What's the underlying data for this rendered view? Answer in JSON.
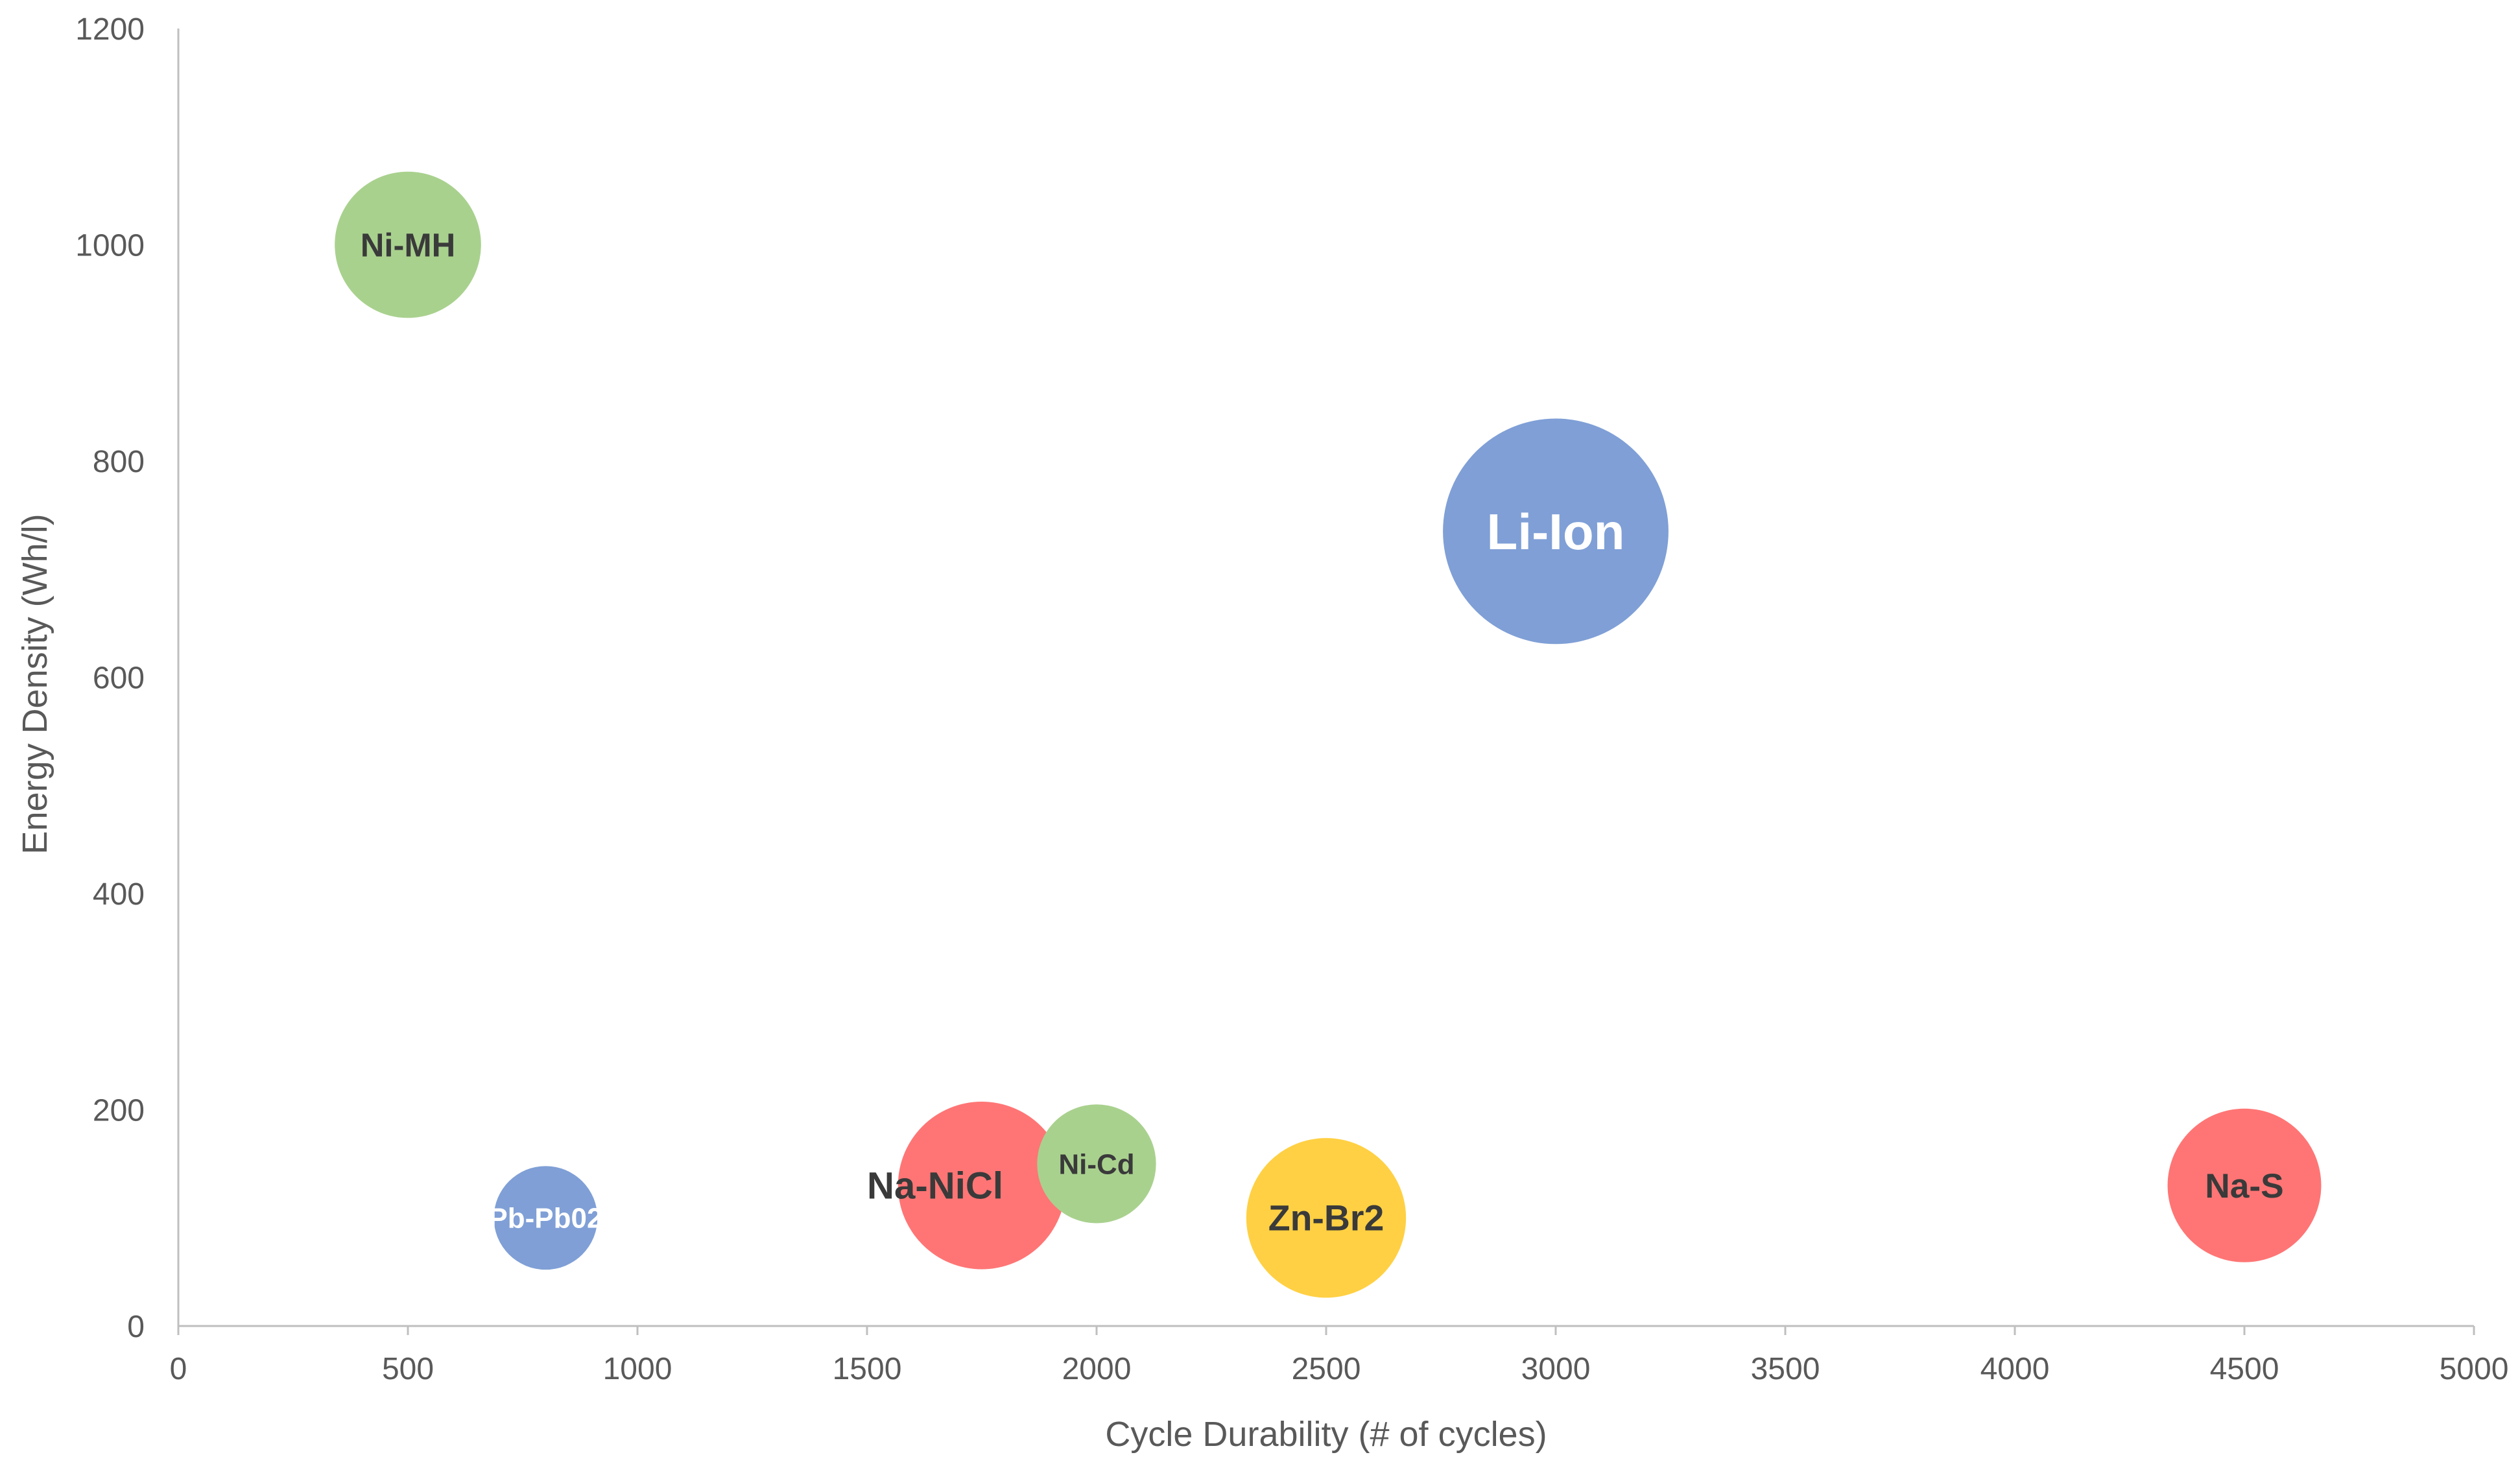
{
  "chart_data": {
    "type": "bubble",
    "title": "",
    "xlabel": "Cycle Durability (# of cycles)",
    "ylabel": "Energy Density (Wh/l)",
    "xlim": [
      0,
      5000
    ],
    "ylim": [
      0,
      1200
    ],
    "xticks": [
      0,
      500,
      1000,
      1500,
      2000,
      2500,
      3000,
      3500,
      4000,
      4500,
      5000
    ],
    "yticks": [
      0,
      200,
      400,
      600,
      800,
      1000,
      1200
    ],
    "grid": false,
    "legend": "none",
    "points": [
      {
        "label": "Ni-MH",
        "x": 500,
        "y": 1000,
        "size": 240,
        "color": "#A9D18E",
        "label_color": "#3A3A3A"
      },
      {
        "label": "Li-Ion",
        "x": 3000,
        "y": 735,
        "size": 370,
        "color": "#7F9FD6",
        "label_color": "#FFFFFF"
      },
      {
        "label": "Pb-Pb02",
        "x": 800,
        "y": 100,
        "size": 170,
        "color": "#7F9FD6",
        "label_color": "#FFFFFF"
      },
      {
        "label": "Na-NiCl",
        "x": 1750,
        "y": 130,
        "size": 275,
        "color": "#FF7575",
        "label_color": "#3A3A3A"
      },
      {
        "label": "Ni-Cd",
        "x": 2000,
        "y": 150,
        "size": 195,
        "color": "#A9D18E",
        "label_color": "#3A3A3A"
      },
      {
        "label": "Zn-Br2",
        "x": 2500,
        "y": 100,
        "size": 262,
        "color": "#FFD043",
        "label_color": "#3A3A3A"
      },
      {
        "label": "Na-S",
        "x": 4500,
        "y": 130,
        "size": 252,
        "color": "#FF7575",
        "label_color": "#3A3A3A"
      }
    ]
  }
}
